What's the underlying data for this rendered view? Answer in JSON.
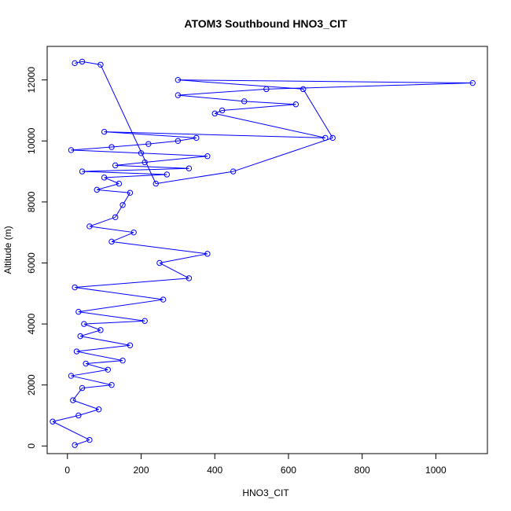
{
  "chart_data": {
    "type": "scatter",
    "title": "ATOM3 Southbound HNO3_CIT",
    "xlabel": "HNO3_CIT",
    "ylabel": "Altitude (m)",
    "xlim": [
      -55,
      1140
    ],
    "ylim": [
      -250,
      13100
    ],
    "xticks": [
      0,
      200,
      400,
      600,
      800,
      1000
    ],
    "yticks": [
      0,
      2000,
      4000,
      6000,
      8000,
      10000,
      12000
    ],
    "series": [
      {
        "marker": "open-circle-with-lines",
        "color": "#0000ff",
        "x": [
          20,
          60,
          -40,
          30,
          85,
          15,
          40,
          120,
          10,
          110,
          50,
          150,
          25,
          170,
          35,
          90,
          45,
          210,
          30,
          260,
          20,
          330,
          250,
          380,
          120,
          180,
          60,
          130,
          150,
          170,
          80,
          140,
          100,
          270,
          40,
          330,
          130,
          210,
          380,
          200,
          10,
          120,
          220,
          300,
          350,
          100,
          700,
          400,
          420,
          620,
          480,
          300,
          540,
          1100,
          300,
          640,
          720,
          450,
          240,
          90,
          40,
          20
        ],
        "y": [
          30,
          200,
          800,
          1000,
          1200,
          1500,
          1900,
          2000,
          2300,
          2500,
          2700,
          2800,
          3100,
          3300,
          3600,
          3800,
          4000,
          4100,
          4400,
          4800,
          5200,
          5500,
          6000,
          6300,
          6700,
          7000,
          7200,
          7500,
          7900,
          8300,
          8400,
          8600,
          8800,
          8900,
          9000,
          9100,
          9200,
          9300,
          9500,
          9600,
          9700,
          9800,
          9900,
          10000,
          10100,
          10300,
          10100,
          10900,
          11000,
          11200,
          11300,
          11500,
          11700,
          11900,
          12000,
          11700,
          10100,
          9000,
          8600,
          12500,
          12600,
          12550
        ]
      }
    ]
  }
}
